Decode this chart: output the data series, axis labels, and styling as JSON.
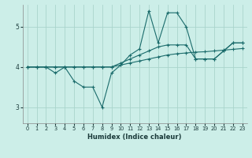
{
  "xlabel": "Humidex (Indice chaleur)",
  "bg_color": "#cceee8",
  "grid_color": "#aad4cc",
  "line_color": "#1a6b6b",
  "xlim": [
    -0.5,
    23.5
  ],
  "ylim": [
    2.6,
    5.55
  ],
  "yticks": [
    3,
    4,
    5
  ],
  "xticks": [
    0,
    1,
    2,
    3,
    4,
    5,
    6,
    7,
    8,
    9,
    10,
    11,
    12,
    13,
    14,
    15,
    16,
    17,
    18,
    19,
    20,
    21,
    22,
    23
  ],
  "line1_x": [
    0,
    1,
    2,
    3,
    4,
    5,
    6,
    7,
    8,
    9,
    10,
    11,
    12,
    13,
    14,
    15,
    16,
    17,
    18,
    19,
    20,
    21,
    22,
    23
  ],
  "line1_y": [
    4.0,
    4.0,
    4.0,
    4.0,
    4.0,
    4.0,
    4.0,
    4.0,
    4.0,
    4.0,
    4.05,
    4.1,
    4.15,
    4.2,
    4.25,
    4.3,
    4.33,
    4.35,
    4.37,
    4.38,
    4.4,
    4.42,
    4.44,
    4.46
  ],
  "line2_x": [
    0,
    1,
    2,
    3,
    4,
    5,
    6,
    7,
    8,
    9,
    10,
    11,
    12,
    13,
    14,
    15,
    16,
    17,
    18,
    19,
    20,
    21,
    22,
    23
  ],
  "line2_y": [
    4.0,
    4.0,
    4.0,
    3.85,
    4.0,
    3.65,
    3.5,
    3.5,
    3.0,
    3.85,
    4.05,
    4.3,
    4.45,
    5.4,
    4.6,
    5.35,
    5.35,
    5.0,
    4.2,
    4.2,
    4.2,
    4.4,
    4.6,
    4.6
  ],
  "line3_x": [
    0,
    1,
    2,
    3,
    4,
    5,
    6,
    7,
    8,
    9,
    10,
    11,
    12,
    13,
    14,
    15,
    16,
    17,
    18,
    19,
    20,
    21,
    22,
    23
  ],
  "line3_y": [
    4.0,
    4.0,
    4.0,
    4.0,
    4.0,
    4.0,
    4.0,
    4.0,
    4.0,
    4.0,
    4.1,
    4.2,
    4.3,
    4.4,
    4.5,
    4.55,
    4.55,
    4.55,
    4.2,
    4.2,
    4.2,
    4.4,
    4.6,
    4.6
  ]
}
